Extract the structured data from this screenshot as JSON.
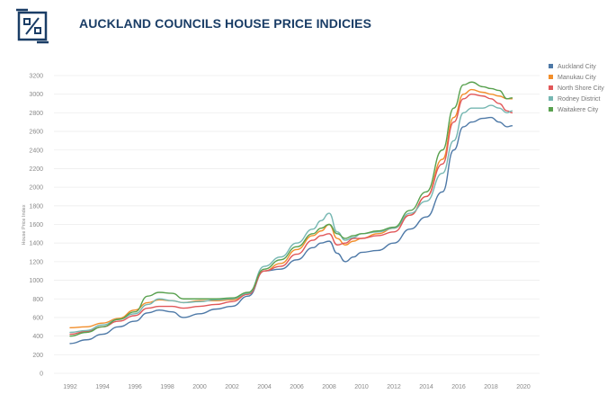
{
  "header": {
    "title": "AUCKLAND COUNCILS HOUSE PRICE INDICIES",
    "logo_icon": "percent-logo-icon"
  },
  "chart_data": {
    "type": "line",
    "title": "AUCKLAND COUNCILS HOUSE PRICE INDICIES",
    "xlabel": "",
    "ylabel": "House Price Index",
    "xlim": [
      1991,
      2021
    ],
    "ylim": [
      0,
      3200
    ],
    "x_ticks": [
      1992,
      1994,
      1996,
      1998,
      2000,
      2002,
      2004,
      2006,
      2008,
      2010,
      2012,
      2014,
      2016,
      2018,
      2020
    ],
    "y_ticks": [
      0,
      200,
      400,
      600,
      800,
      1000,
      1200,
      1400,
      1600,
      1800,
      2000,
      2200,
      2400,
      2600,
      2800,
      3000,
      3200
    ],
    "grid": true,
    "legend_position": "top-right",
    "series": [
      {
        "name": "Auckland City",
        "color": "#4e79a7",
        "x": [
          1992,
          1993,
          1994,
          1995,
          1996,
          1996.8,
          1997.5,
          1998.3,
          1999,
          2000,
          2001,
          2002,
          2003,
          2004,
          2005,
          2006,
          2007,
          2007.5,
          2008,
          2008.5,
          2009,
          2009.5,
          2010,
          2011,
          2012,
          2013,
          2014,
          2015,
          2015.7,
          2016.3,
          2016.8,
          2017.5,
          2018,
          2018.5,
          2019,
          2019.3
        ],
        "values": [
          320,
          360,
          420,
          500,
          560,
          650,
          680,
          660,
          600,
          640,
          690,
          720,
          830,
          1100,
          1120,
          1220,
          1350,
          1400,
          1420,
          1290,
          1200,
          1250,
          1300,
          1320,
          1400,
          1550,
          1680,
          1950,
          2400,
          2650,
          2700,
          2740,
          2750,
          2700,
          2650,
          2660
        ]
      },
      {
        "name": "Manukau City",
        "color": "#f28e2b",
        "x": [
          1992,
          1993,
          1994,
          1995,
          1996,
          1996.8,
          1997.5,
          1998.3,
          1999,
          2000,
          2001,
          2002,
          2003,
          2004,
          2005,
          2006,
          2007,
          2007.5,
          2008,
          2008.5,
          2009,
          2009.5,
          2010,
          2011,
          2012,
          2013,
          2014,
          2015,
          2015.7,
          2016.3,
          2016.8,
          2017.5,
          2018,
          2018.5,
          2019,
          2019.3
        ],
        "values": [
          490,
          500,
          540,
          590,
          680,
          760,
          790,
          780,
          760,
          780,
          780,
          790,
          850,
          1100,
          1180,
          1330,
          1480,
          1530,
          1600,
          1450,
          1380,
          1420,
          1450,
          1500,
          1560,
          1700,
          1900,
          2300,
          2750,
          3000,
          3050,
          3020,
          3000,
          2980,
          2950,
          2950
        ]
      },
      {
        "name": "North Shore City",
        "color": "#e15759",
        "x": [
          1992,
          1993,
          1994,
          1995,
          1996,
          1996.8,
          1997.5,
          1998.3,
          1999,
          2000,
          2001,
          2002,
          2003,
          2004,
          2005,
          2006,
          2007,
          2007.5,
          2008,
          2008.5,
          2009,
          2009.5,
          2010,
          2011,
          2012,
          2013,
          2014,
          2015,
          2015.7,
          2016.3,
          2016.8,
          2017.5,
          2018,
          2018.5,
          2019,
          2019.3
        ],
        "values": [
          420,
          450,
          500,
          560,
          620,
          700,
          720,
          720,
          700,
          720,
          740,
          770,
          850,
          1100,
          1150,
          1280,
          1430,
          1480,
          1500,
          1380,
          1400,
          1450,
          1450,
          1480,
          1520,
          1700,
          1900,
          2250,
          2700,
          2950,
          3000,
          2980,
          2950,
          2900,
          2820,
          2800
        ]
      },
      {
        "name": "Rodney District",
        "color": "#76b7b2",
        "x": [
          1992,
          1993,
          1994,
          1995,
          1996,
          1996.8,
          1997.5,
          1998.3,
          1999,
          2000,
          2001,
          2002,
          2003,
          2004,
          2005,
          2006,
          2007,
          2007.5,
          2008,
          2008.5,
          2009,
          2009.5,
          2010,
          2011,
          2012,
          2013,
          2014,
          2015,
          2015.7,
          2016.3,
          2016.8,
          2017.5,
          2018,
          2018.5,
          2019,
          2019.3
        ],
        "values": [
          440,
          460,
          520,
          580,
          640,
          740,
          800,
          780,
          760,
          770,
          790,
          800,
          860,
          1150,
          1250,
          1400,
          1550,
          1640,
          1720,
          1520,
          1430,
          1460,
          1500,
          1520,
          1560,
          1720,
          1850,
          2150,
          2500,
          2800,
          2850,
          2850,
          2880,
          2850,
          2800,
          2820
        ]
      },
      {
        "name": "Waitakere City",
        "color": "#59a14f",
        "x": [
          1992,
          1993,
          1994,
          1995,
          1996,
          1996.8,
          1997.5,
          1998.3,
          1999,
          2000,
          2001,
          2002,
          2003,
          2004,
          2005,
          2006,
          2007,
          2007.5,
          2008,
          2008.5,
          2009,
          2009.5,
          2010,
          2011,
          2012,
          2013,
          2014,
          2015,
          2015.7,
          2016.3,
          2016.8,
          2017.5,
          2018,
          2018.5,
          2019,
          2019.3
        ],
        "values": [
          400,
          440,
          500,
          580,
          660,
          830,
          870,
          860,
          800,
          800,
          800,
          810,
          870,
          1120,
          1220,
          1360,
          1500,
          1560,
          1600,
          1500,
          1450,
          1480,
          1500,
          1530,
          1570,
          1750,
          1950,
          2400,
          2850,
          3100,
          3130,
          3080,
          3060,
          3040,
          2950,
          2960
        ]
      }
    ]
  }
}
